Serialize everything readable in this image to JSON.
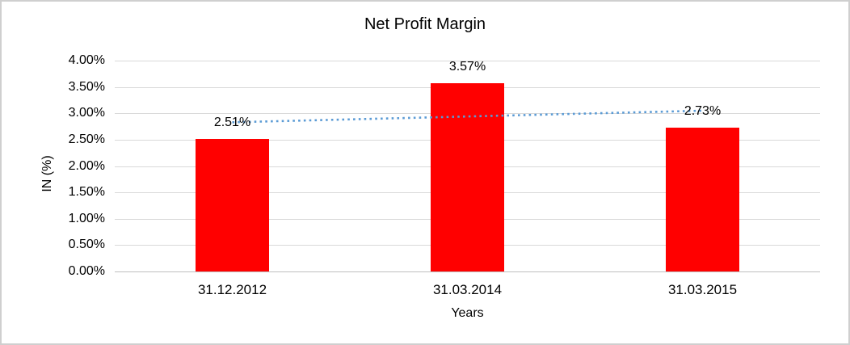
{
  "chart_data": {
    "type": "bar",
    "title": "Net Profit Margin",
    "xlabel": "Years",
    "ylabel": "IN (%)",
    "categories": [
      "31.12.2012",
      "31.03.2014",
      "31.03.2015"
    ],
    "values": [
      2.51,
      3.57,
      2.73
    ],
    "data_labels": [
      "2.51%",
      "3.57%",
      "2.73%"
    ],
    "ylim": [
      0,
      4
    ],
    "ytick_step": 0.5,
    "ytick_labels": [
      "0.00%",
      "0.50%",
      "1.00%",
      "1.50%",
      "2.00%",
      "2.50%",
      "3.00%",
      "3.50%",
      "4.00%"
    ],
    "grid": true,
    "legend": "none",
    "bar_color": "#ff0000",
    "trendline": {
      "type": "linear",
      "style": "dotted",
      "color": "#5b9bd5",
      "start_value": 2.83,
      "end_value": 3.05
    }
  }
}
